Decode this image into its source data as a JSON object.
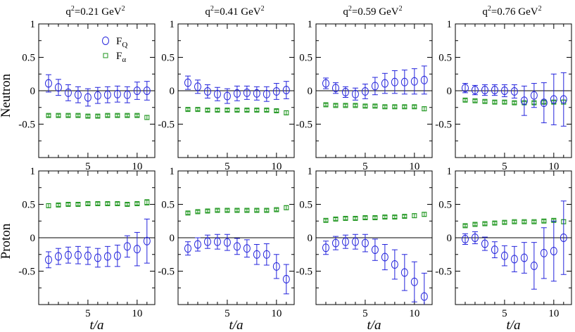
{
  "row_labels": [
    "Neutron",
    "Proton"
  ],
  "xlabel": "t/a",
  "legend": {
    "fq_label": "F",
    "fq_sub": "Q",
    "fa_label": "F",
    "fa_sub": "α",
    "placement": "top-right inside first panel"
  },
  "colors": {
    "fq": "#2323dc",
    "fa": "#1e961e",
    "axes": "#000000"
  },
  "chart_data": {
    "type": "scatter",
    "xlim": [
      0,
      11.8
    ],
    "ylim": [
      -1,
      1
    ],
    "xticks": [
      5,
      10
    ],
    "yticks": [
      -0.5,
      0,
      0.5,
      1
    ],
    "ytick_labels": [
      "-0.5",
      "0",
      "0.5",
      "1"
    ],
    "columns": [
      {
        "title_pre": "q",
        "title_sup": "2",
        "title_mid": "=0.21 GeV",
        "title_sup2": "2"
      },
      {
        "title_pre": "q",
        "title_sup": "2",
        "title_mid": "=0.41 GeV",
        "title_sup2": "2"
      },
      {
        "title_pre": "q",
        "title_sup": "2",
        "title_mid": "=0.59 GeV",
        "title_sup2": "2"
      },
      {
        "title_pre": "q",
        "title_sup": "2",
        "title_mid": "=0.76 GeV",
        "title_sup2": "2"
      }
    ],
    "panels": [
      {
        "row": 0,
        "col": 0,
        "fq": {
          "x": [
            1,
            2,
            3,
            4,
            5,
            6,
            7,
            8,
            9,
            10,
            11
          ],
          "y": [
            0.11,
            0.05,
            -0.03,
            -0.06,
            -0.1,
            -0.07,
            -0.06,
            -0.05,
            -0.06,
            0,
            0
          ],
          "err": [
            0.13,
            0.12,
            0.12,
            0.12,
            0.13,
            0.12,
            0.12,
            0.12,
            0.12,
            0.13,
            0.14
          ]
        },
        "fa": {
          "x": [
            1,
            2,
            3,
            4,
            5,
            6,
            7,
            8,
            9,
            10,
            11
          ],
          "y": [
            -0.37,
            -0.37,
            -0.37,
            -0.37,
            -0.38,
            -0.38,
            -0.37,
            -0.37,
            -0.37,
            -0.37,
            -0.4
          ],
          "err": [
            0.02,
            0.02,
            0.02,
            0.02,
            0.02,
            0.02,
            0.02,
            0.02,
            0.02,
            0.02,
            0.03
          ]
        }
      },
      {
        "row": 0,
        "col": 1,
        "fq": {
          "x": [
            1,
            2,
            3,
            4,
            5,
            6,
            7,
            8,
            9,
            10,
            11
          ],
          "y": [
            0.12,
            0.06,
            -0.01,
            -0.05,
            -0.08,
            -0.04,
            -0.03,
            -0.04,
            -0.05,
            -0.01,
            0.01
          ],
          "err": [
            0.1,
            0.1,
            0.1,
            0.1,
            0.11,
            0.11,
            0.1,
            0.1,
            0.11,
            0.12,
            0.13
          ]
        },
        "fa": {
          "x": [
            1,
            2,
            3,
            4,
            5,
            6,
            7,
            8,
            9,
            10,
            11
          ],
          "y": [
            -0.28,
            -0.28,
            -0.29,
            -0.29,
            -0.29,
            -0.29,
            -0.29,
            -0.29,
            -0.29,
            -0.3,
            -0.33
          ],
          "err": [
            0.02,
            0.02,
            0.02,
            0.02,
            0.02,
            0.02,
            0.02,
            0.02,
            0.02,
            0.02,
            0.03
          ]
        }
      },
      {
        "row": 0,
        "col": 2,
        "fq": {
          "x": [
            1,
            2,
            3,
            4,
            5,
            6,
            7,
            8,
            9,
            10,
            11
          ],
          "y": [
            0.11,
            0.04,
            -0.02,
            -0.05,
            -0.01,
            0.07,
            0.11,
            0.13,
            0.13,
            0.14,
            0.16
          ],
          "err": [
            0.08,
            0.08,
            0.08,
            0.09,
            0.11,
            0.13,
            0.15,
            0.17,
            0.18,
            0.19,
            0.21
          ]
        },
        "fa": {
          "x": [
            1,
            2,
            3,
            4,
            5,
            6,
            7,
            8,
            9,
            10,
            11
          ],
          "y": [
            -0.21,
            -0.22,
            -0.22,
            -0.22,
            -0.23,
            -0.23,
            -0.24,
            -0.24,
            -0.24,
            -0.24,
            -0.27
          ],
          "err": [
            0.02,
            0.02,
            0.02,
            0.02,
            0.02,
            0.02,
            0.02,
            0.02,
            0.02,
            0.02,
            0.03
          ]
        }
      },
      {
        "row": 0,
        "col": 3,
        "fq": {
          "x": [
            1,
            2,
            3,
            4,
            5,
            6,
            7,
            8,
            9,
            10,
            11
          ],
          "y": [
            0.04,
            0.01,
            0.01,
            0.01,
            0,
            -0.01,
            -0.15,
            -0.07,
            -0.18,
            -0.13,
            -0.13
          ],
          "err": [
            0.07,
            0.07,
            0.08,
            0.08,
            0.09,
            0.1,
            0.22,
            0.18,
            0.3,
            0.38,
            0.4
          ]
        },
        "fa": {
          "x": [
            1,
            2,
            3,
            4,
            5,
            6,
            7,
            8,
            9,
            10,
            11
          ],
          "y": [
            -0.14,
            -0.15,
            -0.16,
            -0.17,
            -0.17,
            -0.18,
            -0.18,
            -0.18,
            -0.17,
            -0.17,
            -0.17
          ],
          "err": [
            0.02,
            0.02,
            0.02,
            0.02,
            0.02,
            0.02,
            0.02,
            0.02,
            0.02,
            0.02,
            0.03
          ]
        }
      },
      {
        "row": 1,
        "col": 0,
        "fq": {
          "x": [
            1,
            2,
            3,
            4,
            5,
            6,
            7,
            8,
            9,
            10,
            11
          ],
          "y": [
            -0.33,
            -0.28,
            -0.26,
            -0.26,
            -0.27,
            -0.3,
            -0.28,
            -0.27,
            -0.13,
            -0.17,
            -0.05
          ],
          "err": [
            0.12,
            0.12,
            0.12,
            0.13,
            0.13,
            0.14,
            0.15,
            0.16,
            0.16,
            0.25,
            0.33
          ]
        },
        "fa": {
          "x": [
            1,
            2,
            3,
            4,
            5,
            6,
            7,
            8,
            9,
            10,
            11
          ],
          "y": [
            0.48,
            0.49,
            0.5,
            0.5,
            0.51,
            0.51,
            0.51,
            0.51,
            0.5,
            0.51,
            0.53
          ],
          "err": [
            0.03,
            0.02,
            0.02,
            0.02,
            0.02,
            0.02,
            0.02,
            0.02,
            0.02,
            0.02,
            0.04
          ]
        }
      },
      {
        "row": 1,
        "col": 1,
        "fq": {
          "x": [
            1,
            2,
            3,
            4,
            5,
            6,
            7,
            8,
            9,
            10,
            11
          ],
          "y": [
            -0.16,
            -0.1,
            -0.06,
            -0.06,
            -0.07,
            -0.13,
            -0.16,
            -0.25,
            -0.25,
            -0.43,
            -0.62
          ],
          "err": [
            0.1,
            0.1,
            0.1,
            0.11,
            0.12,
            0.12,
            0.13,
            0.15,
            0.16,
            0.18,
            0.22
          ]
        },
        "fa": {
          "x": [
            1,
            2,
            3,
            4,
            5,
            6,
            7,
            8,
            9,
            10,
            11
          ],
          "y": [
            0.37,
            0.39,
            0.4,
            0.41,
            0.41,
            0.41,
            0.41,
            0.41,
            0.41,
            0.42,
            0.45
          ],
          "err": [
            0.02,
            0.02,
            0.02,
            0.02,
            0.02,
            0.02,
            0.02,
            0.02,
            0.02,
            0.02,
            0.03
          ]
        }
      },
      {
        "row": 1,
        "col": 2,
        "fq": {
          "x": [
            1,
            2,
            3,
            4,
            5,
            6,
            7,
            8,
            9,
            10,
            11
          ],
          "y": [
            -0.15,
            -0.08,
            -0.06,
            -0.06,
            -0.08,
            -0.18,
            -0.29,
            -0.4,
            -0.52,
            -0.66,
            -0.88
          ],
          "err": [
            0.1,
            0.1,
            0.1,
            0.11,
            0.13,
            0.16,
            0.19,
            0.22,
            0.27,
            0.3,
            0.35
          ]
        },
        "fa": {
          "x": [
            1,
            2,
            3,
            4,
            5,
            6,
            7,
            8,
            9,
            10,
            11
          ],
          "y": [
            0.26,
            0.28,
            0.29,
            0.29,
            0.3,
            0.3,
            0.31,
            0.31,
            0.32,
            0.33,
            0.35
          ],
          "err": [
            0.02,
            0.02,
            0.02,
            0.02,
            0.02,
            0.02,
            0.02,
            0.02,
            0.02,
            0.03,
            0.03
          ]
        }
      },
      {
        "row": 1,
        "col": 3,
        "fq": {
          "x": [
            1,
            2,
            3,
            4,
            5,
            6,
            7,
            8,
            9,
            10,
            11
          ],
          "y": [
            -0.02,
            0,
            -0.09,
            -0.18,
            -0.27,
            -0.32,
            -0.3,
            -0.42,
            -0.23,
            -0.2,
            0
          ],
          "err": [
            0.08,
            0.09,
            0.1,
            0.12,
            0.15,
            0.19,
            0.23,
            0.35,
            0.38,
            0.45,
            0.55
          ]
        },
        "fa": {
          "x": [
            1,
            2,
            3,
            4,
            5,
            6,
            7,
            8,
            9,
            10,
            11
          ],
          "y": [
            0.18,
            0.2,
            0.21,
            0.22,
            0.23,
            0.24,
            0.24,
            0.24,
            0.25,
            0.26,
            0.24
          ],
          "err": [
            0.02,
            0.02,
            0.02,
            0.02,
            0.02,
            0.02,
            0.02,
            0.02,
            0.02,
            0.02,
            0.03
          ]
        }
      }
    ]
  }
}
